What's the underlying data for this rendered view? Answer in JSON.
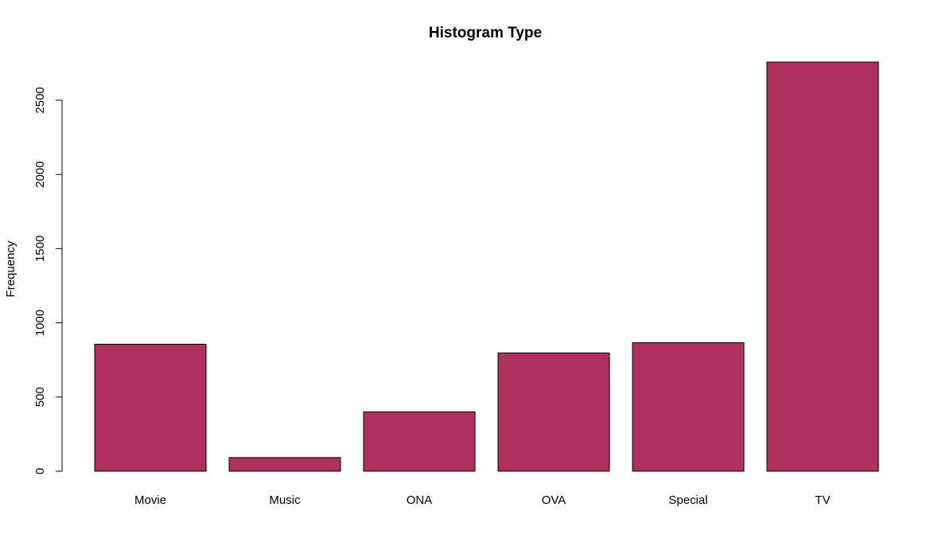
{
  "chart_data": {
    "type": "bar",
    "title": "Histogram Type",
    "xlabel": "",
    "ylabel": "Frequency",
    "categories": [
      "Movie",
      "Music",
      "ONA",
      "OVA",
      "Special",
      "TV"
    ],
    "values": [
      856,
      92,
      400,
      797,
      866,
      2757
    ],
    "ylim": [
      0,
      2757
    ],
    "yticks": [
      "0",
      "500",
      "1000",
      "1500",
      "2000",
      "2500"
    ],
    "bar_color": "#b0305d",
    "grid": false,
    "legend": "none"
  }
}
